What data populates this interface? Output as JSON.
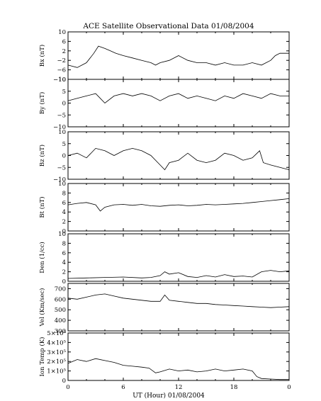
{
  "chart_data": {
    "type": "line",
    "title": "ACE Satellite Observational Data   01/08/2004",
    "xlabel": "UT (Hour)   01/08/2004",
    "xlim": [
      0,
      24
    ],
    "x_tick_labels": [
      "0",
      "6",
      "12",
      "18",
      "0"
    ],
    "panels": [
      {
        "name": "Bx",
        "ylabel": "Bx (nT)",
        "ylim": [
          -10,
          10
        ],
        "y_ticks": [
          -10,
          -6,
          -2,
          2,
          6,
          10
        ],
        "y_tick_labels": [
          "−10",
          "−6",
          "−2",
          "2",
          "6",
          "10"
        ],
        "series": [
          {
            "x": [
              0,
              1,
              2,
              2.8,
              3.3,
              4,
              4.6,
              5.2,
              6,
              7,
              8,
              9,
              9.5,
              10,
              11,
              12,
              13,
              14,
              15,
              16,
              17,
              18,
              19,
              20,
              21,
              22,
              22.5,
              23,
              24
            ],
            "y": [
              -4,
              -5,
              -3,
              1,
              4,
              3,
              2,
              1,
              0,
              -1,
              -2,
              -3,
              -4,
              -3,
              -2,
              0,
              -2,
              -3,
              -3,
              -4,
              -3,
              -4,
              -4,
              -3,
              -4,
              -2,
              0,
              1,
              1
            ]
          }
        ]
      },
      {
        "name": "By",
        "ylabel": "By (nT)",
        "ylim": [
          -10,
          10
        ],
        "y_ticks": [
          -10,
          -5,
          0,
          5,
          10
        ],
        "y_tick_labels": [
          "−10",
          "−5",
          "0",
          "5",
          "10"
        ],
        "series": [
          {
            "x": [
              0,
              1,
              2,
              3,
              3.5,
              4,
              5,
              6,
              7,
              8,
              9,
              10,
              11,
              12,
              13,
              14,
              15,
              16,
              17,
              18,
              19,
              20,
              21,
              22,
              23,
              24
            ],
            "y": [
              1,
              2,
              3,
              4,
              2,
              0,
              3,
              4,
              3,
              4,
              3,
              1,
              3,
              4,
              2,
              3,
              2,
              1,
              3,
              2,
              4,
              3,
              2,
              4,
              3,
              3
            ]
          }
        ]
      },
      {
        "name": "Bz",
        "ylabel": "Bz (nT)",
        "ylim": [
          -10,
          10
        ],
        "y_ticks": [
          -10,
          -5,
          0,
          5,
          10
        ],
        "y_tick_labels": [
          "−10",
          "−5",
          "0",
          "5",
          "10"
        ],
        "series": [
          {
            "x": [
              0,
              1,
              2,
              3,
              4,
              5,
              6,
              7,
              8,
              9,
              10,
              10.5,
              11,
              12,
              13,
              14,
              15,
              16,
              17,
              18,
              19,
              20,
              20.8,
              21.2,
              22,
              23,
              24
            ],
            "y": [
              0,
              1,
              -1,
              3,
              2,
              0,
              2,
              3,
              2,
              0,
              -4,
              -6,
              -3,
              -2,
              1,
              -2,
              -3,
              -2,
              1,
              0,
              -2,
              -1,
              2,
              -3,
              -4,
              -5,
              -6
            ]
          }
        ]
      },
      {
        "name": "Bt",
        "ylabel": "Bt (nT)",
        "ylim": [
          0,
          10
        ],
        "y_ticks": [
          0,
          2,
          4,
          6,
          8,
          10
        ],
        "y_tick_labels": [
          "0",
          "2",
          "4",
          "6",
          "8",
          "10"
        ],
        "series": [
          {
            "x": [
              0,
              1,
              2,
              3,
              3.5,
              4,
              5,
              6,
              7,
              8,
              9,
              10,
              11,
              12,
              13,
              14,
              15,
              16,
              17,
              18,
              19,
              20,
              21,
              22,
              23,
              24
            ],
            "y": [
              5.5,
              5.8,
              6.0,
              5.5,
              4.2,
              5.0,
              5.5,
              5.6,
              5.4,
              5.6,
              5.3,
              5.2,
              5.4,
              5.5,
              5.3,
              5.4,
              5.6,
              5.5,
              5.6,
              5.7,
              5.8,
              6.0,
              6.2,
              6.4,
              6.6,
              6.8
            ]
          }
        ]
      },
      {
        "name": "Den",
        "ylabel": "Den (1/cc)",
        "ylim": [
          0,
          10
        ],
        "y_ticks": [
          0,
          2,
          4,
          6,
          8,
          10
        ],
        "y_tick_labels": [
          "0",
          "2",
          "4",
          "6",
          "8",
          "10"
        ],
        "series": [
          {
            "x": [
              0,
              2,
              4,
              6,
              8,
              9,
              10,
              10.5,
              11,
              12,
              13,
              14,
              15,
              16,
              17,
              18,
              19,
              20,
              21,
              22,
              23,
              24
            ],
            "y": [
              0.6,
              0.7,
              0.8,
              0.9,
              0.7,
              0.8,
              1.2,
              2.0,
              1.5,
              1.8,
              1.0,
              0.8,
              1.2,
              0.9,
              1.4,
              1.0,
              1.1,
              0.9,
              2.0,
              2.3,
              2.0,
              2.2
            ]
          }
        ]
      },
      {
        "name": "Vel",
        "ylabel": "Vel (Km/sec)",
        "ylim": [
          300,
          750
        ],
        "y_ticks": [
          300,
          400,
          500,
          600,
          700
        ],
        "y_tick_labels": [
          "300",
          "400",
          "500",
          "600",
          "700"
        ],
        "series": [
          {
            "x": [
              0,
              1,
              2,
              3,
              4,
              5,
              6,
              7,
              8,
              9,
              10,
              10.5,
              11,
              12,
              13,
              14,
              15,
              16,
              17,
              18,
              19,
              20,
              21,
              22,
              23,
              24
            ],
            "y": [
              610,
              600,
              620,
              640,
              650,
              630,
              610,
              600,
              590,
              580,
              580,
              640,
              590,
              580,
              570,
              560,
              560,
              550,
              545,
              540,
              535,
              530,
              525,
              520,
              525,
              530
            ]
          }
        ]
      },
      {
        "name": "Ion Temp",
        "ylabel": "Ion Temp (K)",
        "ylim": [
          0,
          500000
        ],
        "y_ticks": [
          0,
          100000,
          200000,
          300000,
          400000,
          500000
        ],
        "y_tick_labels": [
          "0",
          "1×10⁵",
          "2×10⁵",
          "3×10⁵",
          "4×10⁵",
          "5×10⁵"
        ],
        "series": [
          {
            "x": [
              0,
              1,
              2,
              3,
              4,
              5,
              6,
              7,
              8,
              8.8,
              9.5,
              10,
              11,
              12,
              13,
              14,
              15,
              16,
              17,
              18,
              19,
              20,
              20.5,
              21,
              22,
              23,
              24
            ],
            "y": [
              180000,
              220000,
              200000,
              230000,
              210000,
              190000,
              160000,
              150000,
              140000,
              130000,
              80000,
              90000,
              120000,
              100000,
              110000,
              90000,
              100000,
              120000,
              100000,
              110000,
              120000,
              100000,
              40000,
              20000,
              15000,
              10000,
              10000
            ]
          }
        ]
      }
    ]
  }
}
